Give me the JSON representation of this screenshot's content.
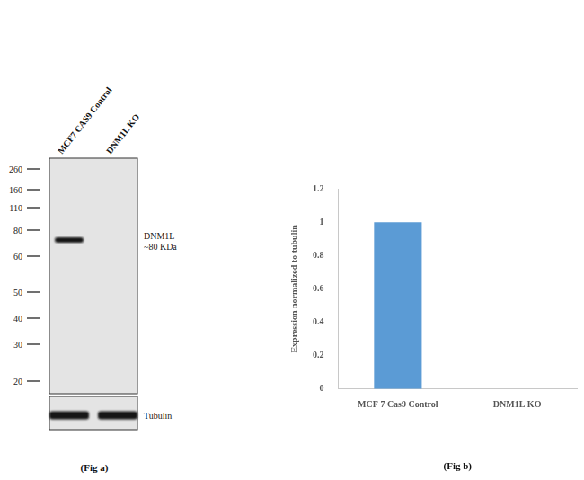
{
  "blot": {
    "lanes": [
      "MCF7 CAS9 Control",
      "DNM1L KO"
    ],
    "markers": [
      260,
      160,
      110,
      80,
      60,
      50,
      40,
      30,
      20
    ],
    "panels": [
      {
        "label": [
          "DNM1L",
          "~80 KDa"
        ],
        "bands": [
          true,
          false
        ]
      },
      {
        "label": [
          "Tubulin"
        ],
        "bands": [
          true,
          true
        ]
      }
    ],
    "caption": "(Fig a)"
  },
  "chart_data": {
    "type": "bar",
    "categories": [
      "MCF 7 Cas9 Control",
      "DNM1L KO"
    ],
    "values": [
      1,
      0
    ],
    "color": "#5b9bd5",
    "y_label": "Expression normalized to tubulin",
    "x_label": "(Fig b)",
    "ylim": [
      0,
      1.2
    ],
    "yticks": [
      0,
      0.2,
      0.4,
      0.6,
      0.8,
      1,
      1.2
    ],
    "grid": false
  }
}
